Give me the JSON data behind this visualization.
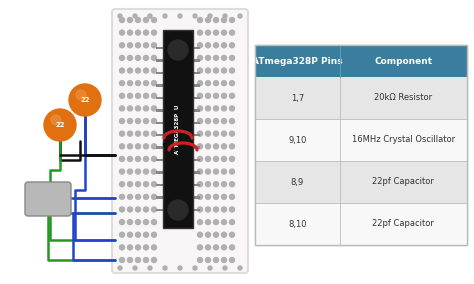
{
  "fig_w": 4.74,
  "fig_h": 2.84,
  "bg_color": "#ffffff",
  "table_header_color": "#3a7d9c",
  "table_row_alt_color": "#e6e6e6",
  "table_row_white": "#f8f8f8",
  "table_header_text_color": "#ffffff",
  "table_text_color": "#333333",
  "table_border_color": "#bbbbbb",
  "headers": [
    "ATmega328P Pins",
    "Component"
  ],
  "rows": [
    [
      "1,7",
      "20kΩ Resistor"
    ],
    [
      "9,10",
      "16MHz Crystal Oscillator"
    ],
    [
      "8,9",
      "22pf Capacitor"
    ],
    [
      "8,10",
      "22pf Capacitor"
    ]
  ],
  "col_split": 0.4,
  "breadboard_facecolor": "#f8f6f6",
  "breadboard_edgecolor": "#dddddd",
  "dot_color": "#b0b0b0",
  "dot_cols": 9,
  "dot_rows": 18,
  "chip_color": "#111111",
  "chip_label_color": "#ffffff",
  "cap_color": "#e07010",
  "cap_shine_color": "#f09040",
  "crystal_color": "#b8b8b8",
  "crystal_edge_color": "#888888",
  "wire_black": "#111111",
  "wire_green": "#229922",
  "wire_blue": "#2244cc",
  "wire_red": "#cc2222",
  "wire_lw": 1.8
}
